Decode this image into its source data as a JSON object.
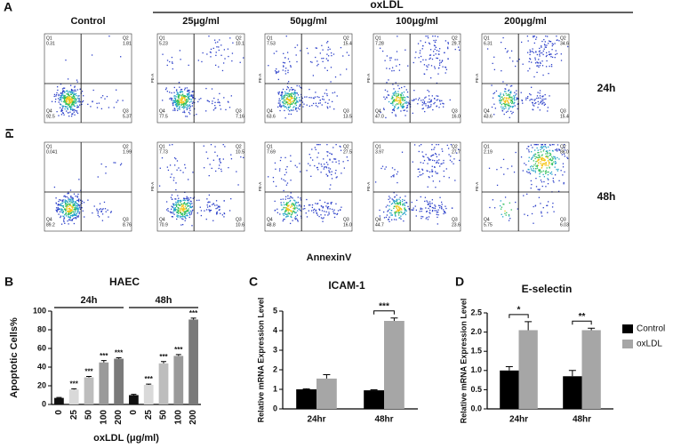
{
  "panel_a": {
    "label": "A",
    "group_label": "oxLDL",
    "columns": [
      "Control",
      "25μg/ml",
      "50μg/ml",
      "100μg/ml",
      "200μg/ml"
    ],
    "rows": [
      "24h",
      "48h"
    ],
    "y_label": "PI",
    "x_label": "AnnexinV",
    "axis_title": "PE-A",
    "quadrant_names": [
      "Q1",
      "Q2",
      "Q3",
      "Q4"
    ],
    "plots": [
      [
        [
          "0.31",
          "1.81",
          "5.37",
          "92.5"
        ],
        [
          "5.23",
          "10.1",
          "7.16",
          "77.5"
        ],
        [
          "7.53",
          "15.4",
          "13.5",
          "63.6"
        ],
        [
          "7.28",
          "29.7",
          "16.0",
          "47.0"
        ],
        [
          "6.31",
          "34.6",
          "15.4",
          "43.6"
        ]
      ],
      [
        [
          "0.041",
          "1.99",
          "8.76",
          "89.2"
        ],
        [
          "7.73",
          "10.5",
          "10.6",
          "70.9"
        ],
        [
          "7.69",
          "27.5",
          "16.0",
          "48.8"
        ],
        [
          "3.97",
          "27.7",
          "23.6",
          "44.7"
        ],
        [
          "2.19",
          "86.0",
          "6.03",
          "5.75"
        ]
      ]
    ]
  },
  "chart_data": [
    {
      "type": "bar",
      "panel": "B",
      "title": "HAEC",
      "y_label": "Apoptotic Cells%",
      "x_label": "oxLDL (μg/ml)",
      "groups": [
        "24h",
        "48h"
      ],
      "categories": [
        "0",
        "25",
        "50",
        "100",
        "200",
        "0",
        "25",
        "50",
        "100",
        "200"
      ],
      "values": [
        7,
        16,
        29,
        45,
        49,
        10,
        21,
        44,
        52,
        91
      ],
      "errors": [
        0.5,
        0.8,
        1,
        2,
        1,
        0.8,
        0.8,
        2,
        1.5,
        1.5
      ],
      "colors": [
        "#111111",
        "#d9d9d9",
        "#bdbdbd",
        "#9a9a9a",
        "#7a7a7a",
        "#111111",
        "#d9d9d9",
        "#bdbdbd",
        "#9a9a9a",
        "#7a7a7a"
      ],
      "annotations": [
        null,
        "***",
        "***",
        "***",
        "***",
        null,
        "***",
        "***",
        "***",
        "***"
      ],
      "ylim": [
        0,
        100
      ],
      "yticks": [
        0,
        20,
        40,
        60,
        80,
        100
      ]
    },
    {
      "type": "grouped_bar",
      "panel": "C",
      "title": "ICAM-1",
      "y_label": "Relative mRNA Expression Level",
      "categories": [
        "24hr",
        "48hr"
      ],
      "series": [
        {
          "name": "Control",
          "color": "#000000",
          "values": [
            1.0,
            0.95
          ],
          "errors": [
            0.03,
            0.03
          ]
        },
        {
          "name": "oxLDL",
          "color": "#a6a6a6",
          "values": [
            1.55,
            4.5
          ],
          "errors": [
            0.2,
            0.15
          ]
        }
      ],
      "significance": [
        null,
        "***"
      ],
      "ylim": [
        0,
        5
      ],
      "yticks": [
        0,
        1,
        2,
        3,
        4,
        5
      ]
    },
    {
      "type": "grouped_bar",
      "panel": "D",
      "title": "E-selectin",
      "y_label": "Relative mRNA Expression Level",
      "categories": [
        "24hr",
        "48hr"
      ],
      "series": [
        {
          "name": "Control",
          "color": "#000000",
          "values": [
            1.0,
            0.85
          ],
          "errors": [
            0.1,
            0.15
          ]
        },
        {
          "name": "oxLDL",
          "color": "#a6a6a6",
          "values": [
            2.05,
            2.05
          ],
          "errors": [
            0.22,
            0.05
          ]
        }
      ],
      "significance": [
        "*",
        "**"
      ],
      "ylim": [
        0,
        2.5
      ],
      "yticks": [
        {
          "value": 0,
          "label": "0.0"
        },
        {
          "value": 0.5,
          "label": "0.5"
        },
        {
          "value": 1,
          "label": "1.0"
        },
        {
          "value": 1.5,
          "label": "1.5"
        },
        {
          "value": 2,
          "label": "2.0"
        },
        {
          "value": 2.5,
          "label": "2.5"
        }
      ],
      "legend": "right"
    }
  ]
}
